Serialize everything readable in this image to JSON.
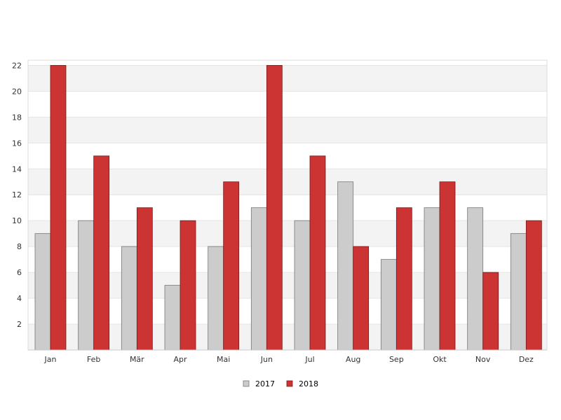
{
  "chart_data": {
    "type": "bar",
    "categories": [
      "Jan",
      "Feb",
      "Mär",
      "Apr",
      "Mai",
      "Jun",
      "Jul",
      "Aug",
      "Sep",
      "Okt",
      "Nov",
      "Dez"
    ],
    "series": [
      {
        "name": "2017",
        "values": [
          9,
          10,
          8,
          5,
          8,
          11,
          10,
          13,
          7,
          11,
          11,
          9
        ],
        "color": "#cccccc",
        "stroke": "#777777"
      },
      {
        "name": "2018",
        "values": [
          22,
          15,
          11,
          10,
          13,
          22,
          15,
          8,
          11,
          13,
          6,
          10
        ],
        "color": "#cc3333",
        "stroke": "#7a1a1a"
      }
    ],
    "y_ticks": [
      2,
      4,
      6,
      8,
      10,
      12,
      14,
      16,
      18,
      20,
      22
    ],
    "ylim": [
      0,
      22.4
    ],
    "grid": "alternating horizontal bands",
    "band_colors": [
      "#f3f3f3",
      "#ffffff"
    ],
    "legend_position": "bottom-center",
    "title": "",
    "xlabel": "",
    "ylabel": ""
  }
}
